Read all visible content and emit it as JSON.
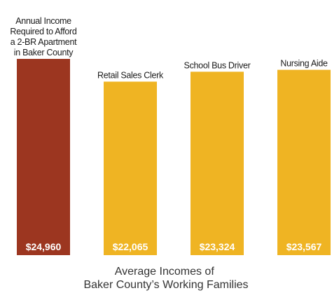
{
  "chart_data": {
    "type": "bar",
    "categories": [
      [
        "Annual Income",
        "Required to Afford",
        "a 2-BR Apartment",
        "in Baker County"
      ],
      [
        "Retail Sales Clerk"
      ],
      [
        "School Bus Driver"
      ],
      [
        "Nursing Aide"
      ]
    ],
    "values": [
      24960,
      22065,
      23324,
      23567
    ],
    "value_labels": [
      "$24,960",
      "$22,065",
      "$23,324",
      "$23,567"
    ],
    "bar_colors": [
      "#9c3620",
      "#efb423",
      "#efb423",
      "#efb423"
    ],
    "caption": [
      "Average Incomes of",
      "Baker County’s Working Families"
    ],
    "xlabel": "",
    "ylabel": "",
    "ylim": [
      0,
      25000
    ],
    "grid": false
  }
}
